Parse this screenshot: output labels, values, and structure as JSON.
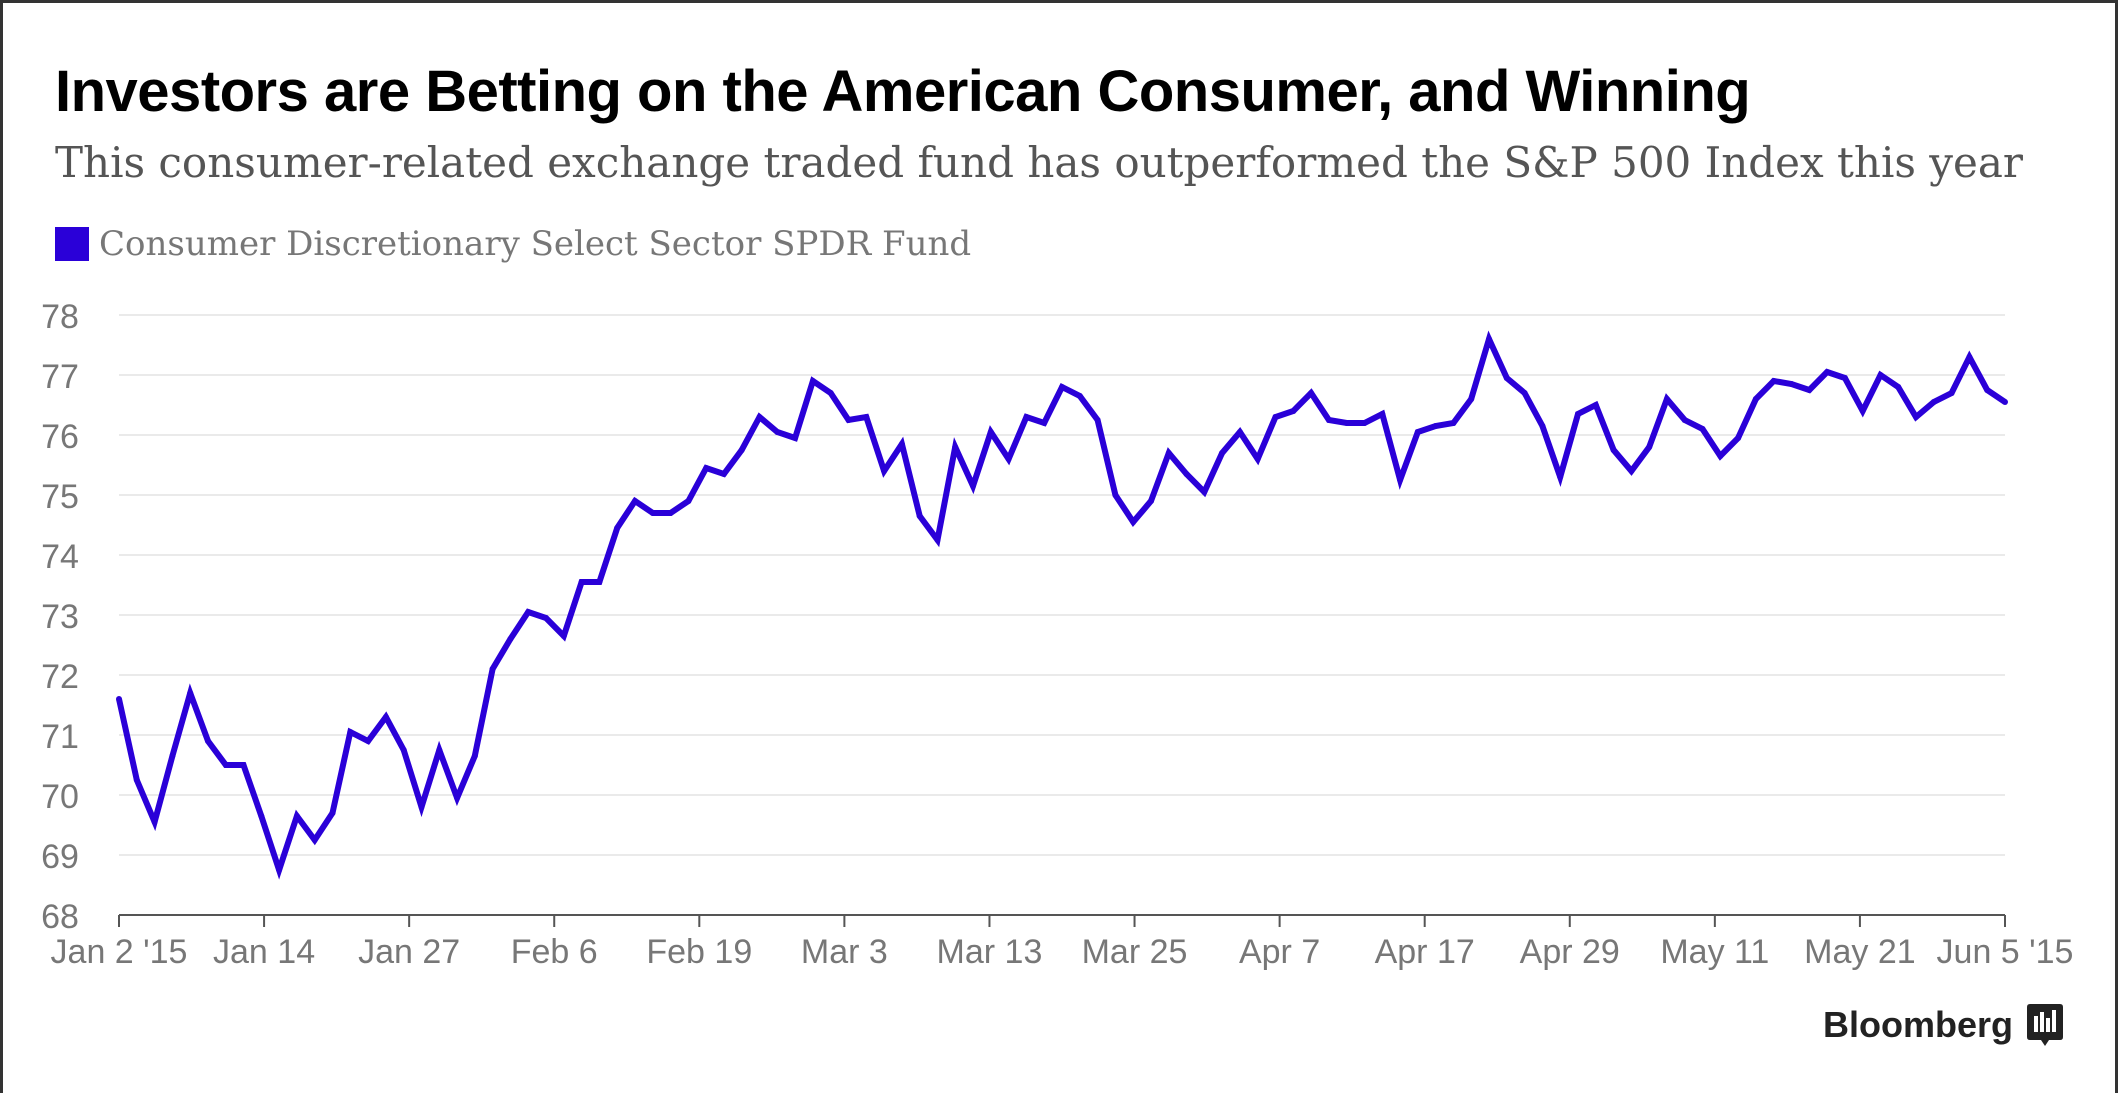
{
  "header": {
    "title": "Investors are Betting on the American Consumer, and Winning",
    "subtitle": "This consumer-related exchange traded fund has outperformed the S&P 500 Index this year"
  },
  "brand": {
    "name": "Bloomberg",
    "icon": "bloomberg-terminal-icon"
  },
  "colors": {
    "series": "#2a00d8",
    "grid": "#e3e3e3",
    "axis_text": "#777777",
    "axis_line": "#555555"
  },
  "chart_data": {
    "type": "line",
    "title": "Investors are Betting on the American Consumer, and Winning",
    "subtitle": "This consumer-related exchange traded fund has outperformed the S&P 500 Index this year",
    "xlabel": "",
    "ylabel": "",
    "ylim": [
      68,
      78
    ],
    "yticks": [
      68,
      69,
      70,
      71,
      72,
      73,
      74,
      75,
      76,
      77,
      78
    ],
    "xticks": [
      "Jan 2 '15",
      "Jan 14",
      "Jan 27",
      "Feb 6",
      "Feb 19",
      "Mar 3",
      "Mar 13",
      "Mar 25",
      "Apr 7",
      "Apr 17",
      "Apr 29",
      "May 11",
      "May 21",
      "Jun 5 '15"
    ],
    "grid": true,
    "legend_position": "top-left",
    "series": [
      {
        "name": "Consumer Discretionary Select Sector SPDR Fund",
        "values": [
          71.6,
          70.25,
          69.55,
          70.65,
          71.7,
          70.9,
          70.5,
          70.5,
          69.65,
          68.75,
          69.65,
          69.25,
          69.7,
          71.05,
          70.9,
          71.3,
          70.75,
          69.8,
          70.75,
          69.95,
          70.65,
          72.1,
          72.6,
          73.05,
          72.95,
          72.65,
          73.55,
          73.55,
          74.45,
          74.9,
          74.7,
          74.7,
          74.9,
          75.45,
          75.35,
          75.75,
          76.3,
          76.05,
          75.95,
          76.9,
          76.7,
          76.25,
          76.3,
          75.4,
          75.85,
          74.65,
          74.25,
          75.8,
          75.15,
          76.05,
          75.6,
          76.3,
          76.2,
          76.8,
          76.65,
          76.25,
          75.0,
          74.55,
          74.9,
          75.7,
          75.35,
          75.05,
          75.7,
          76.05,
          75.6,
          76.3,
          76.4,
          76.7,
          76.25,
          76.2,
          76.2,
          76.35,
          75.25,
          76.05,
          76.15,
          76.2,
          76.6,
          77.6,
          76.95,
          76.7,
          76.15,
          75.3,
          76.35,
          76.5,
          75.75,
          75.4,
          75.8,
          76.6,
          76.25,
          76.1,
          75.65,
          75.95,
          76.6,
          76.9,
          76.85,
          76.75,
          77.05,
          76.95,
          76.4,
          77.0,
          76.8,
          76.3,
          76.55,
          76.7,
          77.3,
          76.75,
          76.55
        ]
      }
    ]
  }
}
